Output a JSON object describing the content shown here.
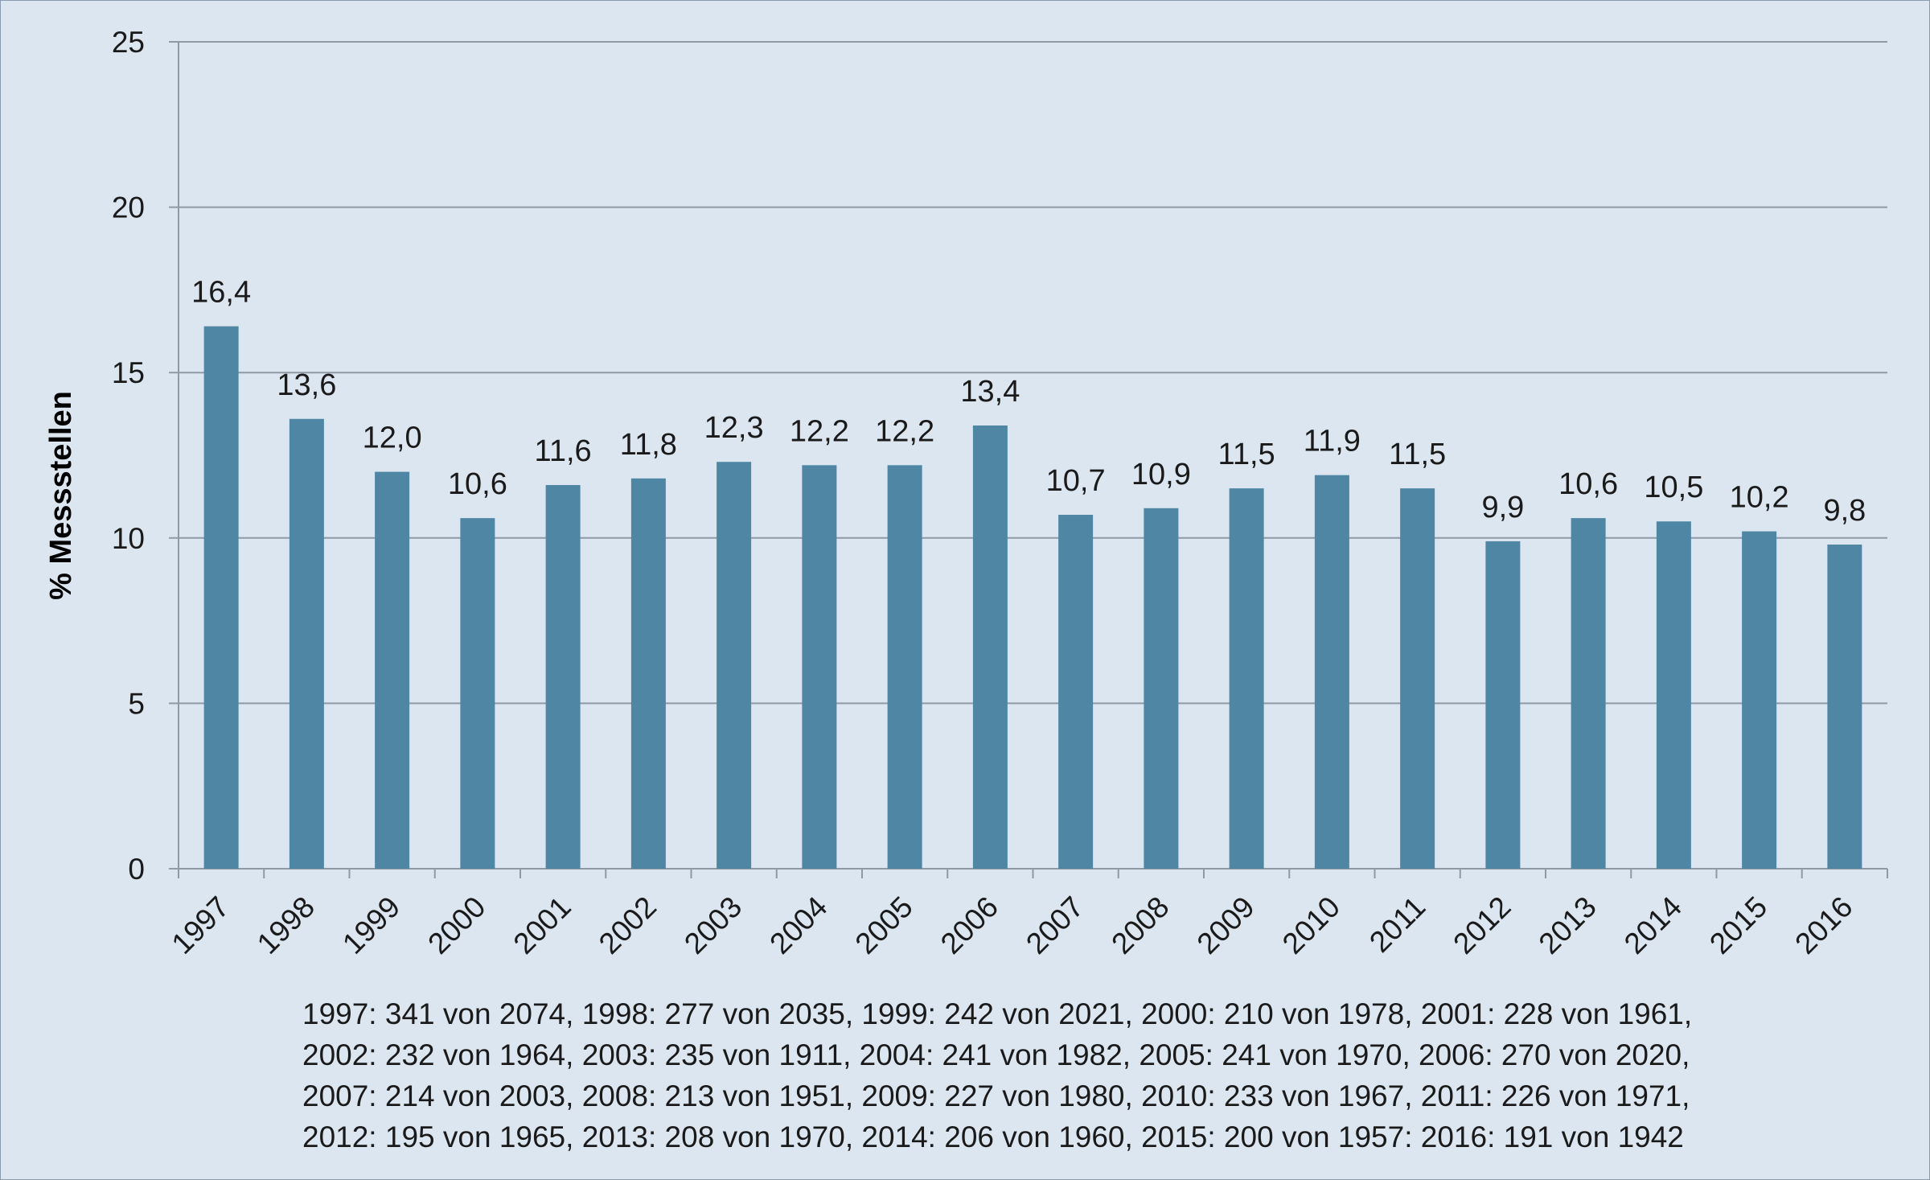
{
  "chart_data": {
    "type": "bar",
    "title": "",
    "xlabel": "",
    "ylabel": "% Messstellen",
    "ylim": [
      0,
      25
    ],
    "yticks": [
      0,
      5,
      10,
      15,
      20,
      25
    ],
    "grid": true,
    "bar_color": "#4f86a4",
    "categories": [
      "1997",
      "1998",
      "1999",
      "2000",
      "2001",
      "2002",
      "2003",
      "2004",
      "2005",
      "2006",
      "2007",
      "2008",
      "2009",
      "2010",
      "2011",
      "2012",
      "2013",
      "2014",
      "2015",
      "2016"
    ],
    "values": [
      16.4,
      13.6,
      12.0,
      10.6,
      11.6,
      11.8,
      12.3,
      12.2,
      12.2,
      13.4,
      10.7,
      10.9,
      11.5,
      11.9,
      11.5,
      9.9,
      10.6,
      10.5,
      10.2,
      9.8
    ],
    "value_labels": [
      "16,4",
      "13,6",
      "12,0",
      "10,6",
      "11,6",
      "11,8",
      "12,3",
      "12,2",
      "12,2",
      "13,4",
      "10,7",
      "10,9",
      "11,5",
      "11,9",
      "11,5",
      "9,9",
      "10,6",
      "10,5",
      "10,2",
      "9,8"
    ]
  },
  "footnote": [
    "1997: 341 von 2074, 1998: 277 von 2035, 1999: 242 von 2021, 2000: 210 von 1978, 2001: 228 von 1961,",
    "2002: 232 von 1964, 2003: 235 von 1911, 2004: 241 von 1982, 2005: 241 von 1970, 2006: 270 von 2020,",
    "2007: 214 von 2003, 2008: 213 von 1951, 2009: 227 von 1980, 2010: 233 von 1967, 2011: 226 von 1971,",
    "2012: 195 von 1965, 2013: 208 von 1970, 2014: 206 von 1960, 2015: 200 von 1957: 2016: 191 von 1942"
  ]
}
